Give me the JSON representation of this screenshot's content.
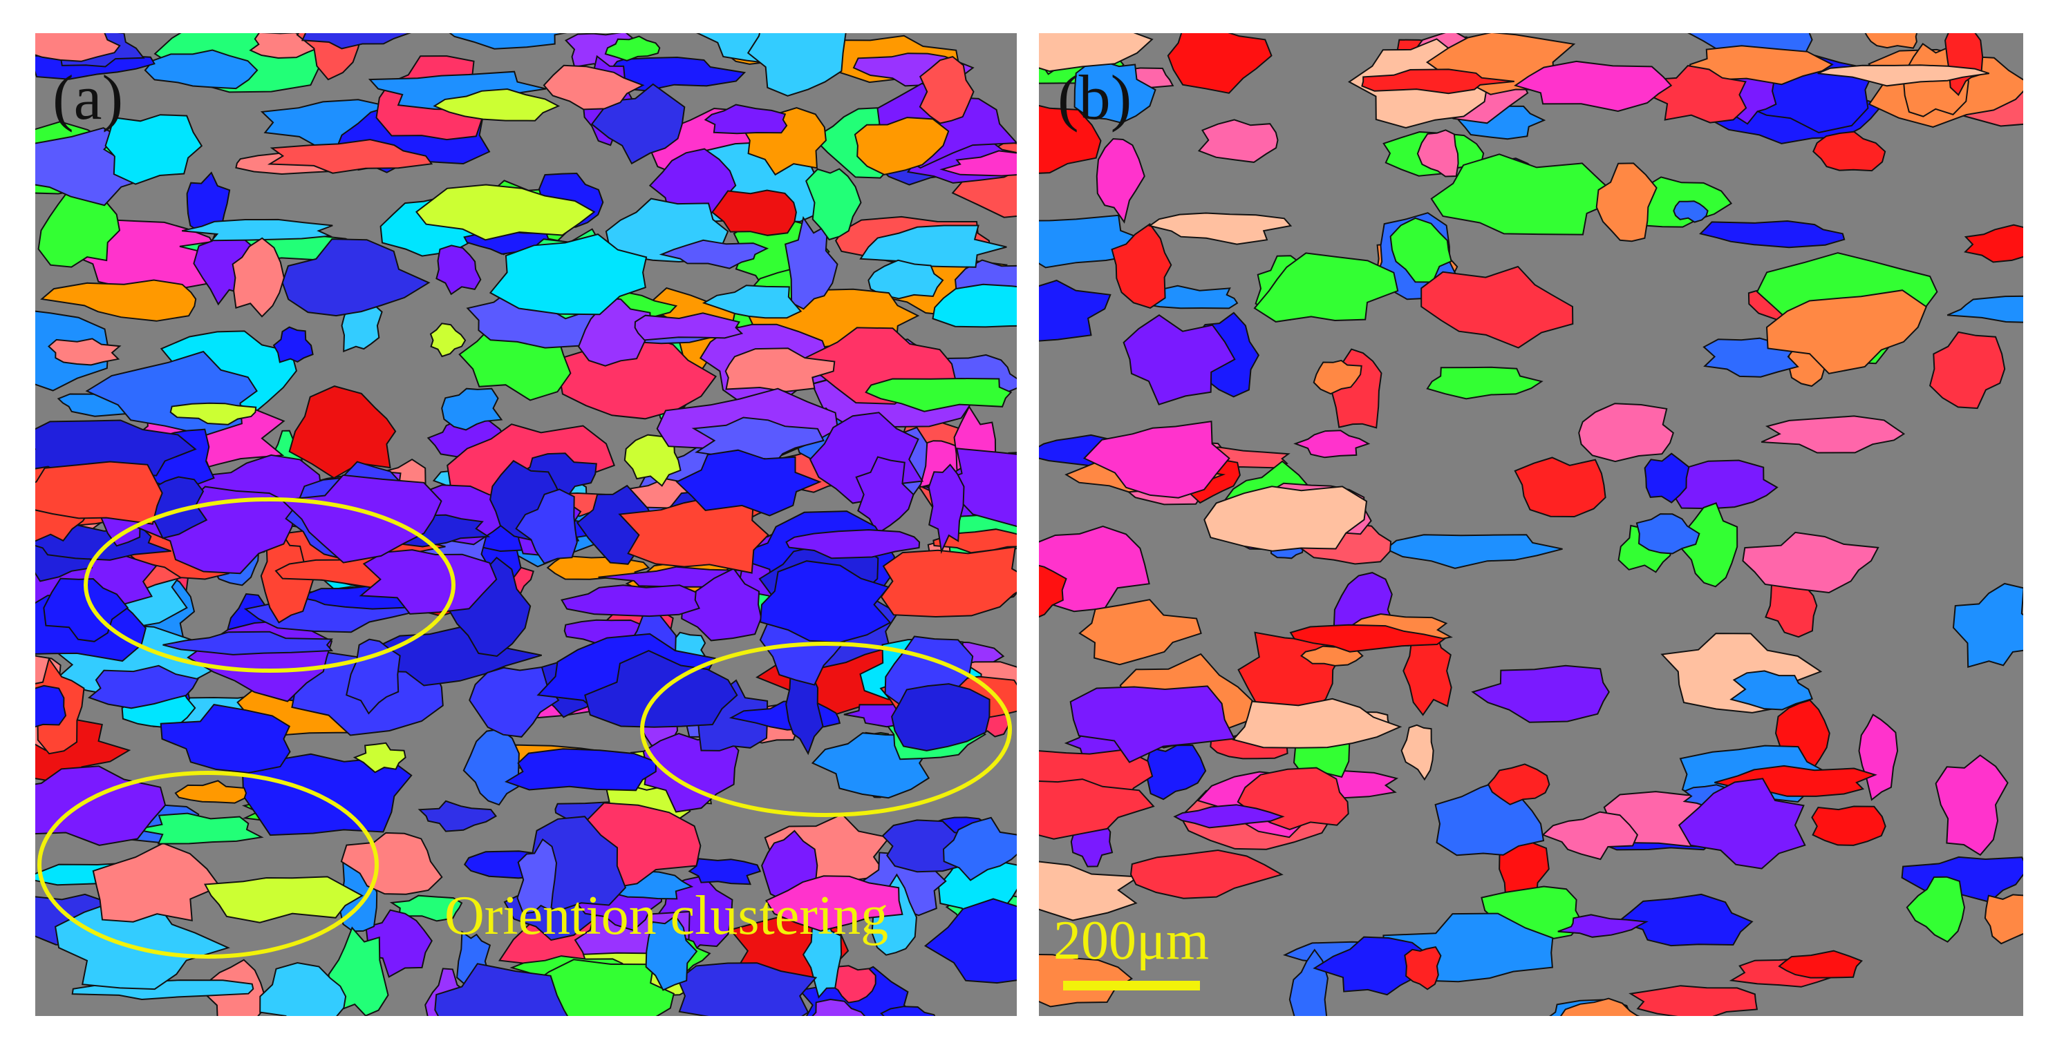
{
  "panels": [
    {
      "label": "(a)"
    },
    {
      "label": "(b)"
    }
  ],
  "annotation": "Oriention clustering",
  "scale_bar": "200μm"
}
